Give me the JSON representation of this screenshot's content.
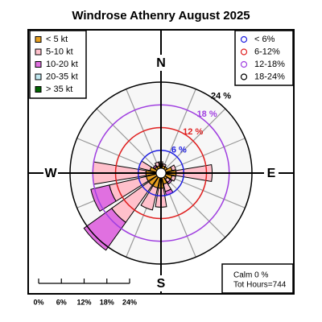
{
  "chart_data": {
    "type": "windrose",
    "title": "Windrose  Athenry August 2025",
    "categories": [
      "N",
      null,
      null,
      null,
      "E",
      null,
      null,
      null,
      "S",
      null,
      null,
      null,
      "W",
      null,
      null,
      null
    ],
    "series": [
      {
        "name": "< 5  kt",
        "color": "#e8a020",
        "values": [
          2.5,
          2,
          2,
          3,
          4,
          3,
          2,
          3,
          4,
          4,
          4,
          4,
          4,
          3,
          2,
          2
        ]
      },
      {
        "name": "5-10 kt",
        "color": "#ffc0cb",
        "values": [
          0.5,
          0.5,
          0,
          1,
          9.5,
          1,
          1,
          2,
          5,
          6,
          12,
          10,
          14,
          3,
          0,
          1
        ]
      },
      {
        "name": "10-20 kt",
        "color": "#e070e0",
        "values": [
          0,
          0,
          0,
          0,
          0,
          0,
          0.5,
          1,
          0,
          0,
          9,
          5,
          0,
          0,
          0.5,
          0
        ]
      },
      {
        "name": "20-35 kt",
        "color": "#c0e8f0",
        "values": [
          0,
          0,
          0,
          0,
          0,
          0,
          0,
          0,
          0,
          0,
          0,
          0,
          0,
          0,
          0,
          0
        ]
      },
      {
        "name": " > 35 kt",
        "color": "#006400",
        "values": [
          0,
          0,
          0,
          0,
          0,
          0,
          0,
          0,
          0,
          0,
          0,
          0,
          0,
          0,
          0,
          0
        ]
      }
    ],
    "rlim": [
      0,
      24
    ],
    "rticks": [
      {
        "value": 6,
        "label": "6 %",
        "color": "#2020e0"
      },
      {
        "value": 12,
        "label": "12 %",
        "color": "#e02020"
      },
      {
        "value": 18,
        "label": "18 %",
        "color": "#a040e0"
      },
      {
        "value": 24,
        "label": "24 %",
        "color": "#000000"
      }
    ],
    "ring_legend": [
      "< 6%",
      "6-12%",
      "12-18%",
      "18-24%"
    ],
    "scale_ticks": [
      {
        "value": 0,
        "label": "0%"
      },
      {
        "value": 6,
        "label": "6%"
      },
      {
        "value": 12,
        "label": "12%"
      },
      {
        "value": 18,
        "label": "18%"
      },
      {
        "value": 24,
        "label": "24%"
      }
    ],
    "annotations": [
      "Calm 0 %",
      "Tot Hours=744"
    ]
  }
}
